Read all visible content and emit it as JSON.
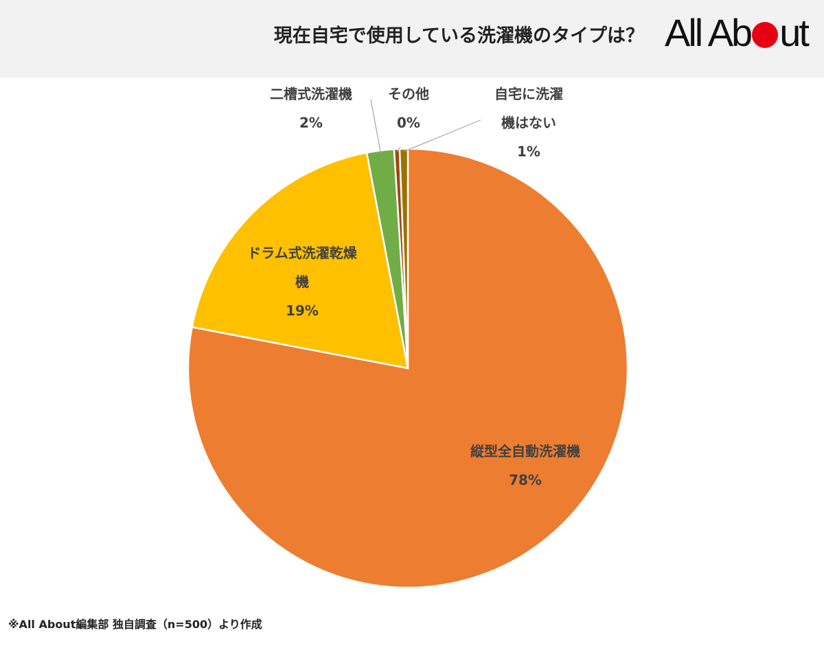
{
  "header": {
    "title": "現在自宅で使用している洗濯機のタイプは？",
    "logo": {
      "text_before": "All Ab",
      "text_after": "ut",
      "dot_color": "#e60012"
    }
  },
  "chart_data": {
    "type": "pie",
    "title": "現在自宅で使用している洗濯機のタイプは？",
    "slices": [
      {
        "label": "縦型全自動洗濯機",
        "value": 78,
        "value_label": "78%",
        "color": "#ed7d31"
      },
      {
        "label": "ドラム式洗濯乾燥機",
        "value": 19,
        "value_label": "19%",
        "color": "#ffc000"
      },
      {
        "label": "二槽式洗濯機",
        "value": 2,
        "value_label": "2%",
        "color": "#70ad47"
      },
      {
        "label": "その他",
        "value": 0.4,
        "value_label": "0%",
        "color": "#9e480e"
      },
      {
        "label": "自宅に洗濯機はない",
        "value": 0.6,
        "value_label": "1%",
        "color": "#997300"
      }
    ],
    "label_lines": {
      "zensakudo": [
        "縦型全自動洗濯機",
        "78%"
      ],
      "drum": [
        "ドラム式洗濯乾燥",
        "機",
        "19%"
      ],
      "niso": [
        "二槽式洗濯機",
        "2%"
      ],
      "sonota": [
        "その他",
        "0%"
      ],
      "nashi": [
        "自宅に洗濯",
        "機はない",
        "1%"
      ]
    }
  },
  "footnote": "※All About編集部 独自調査（n=500）より作成"
}
